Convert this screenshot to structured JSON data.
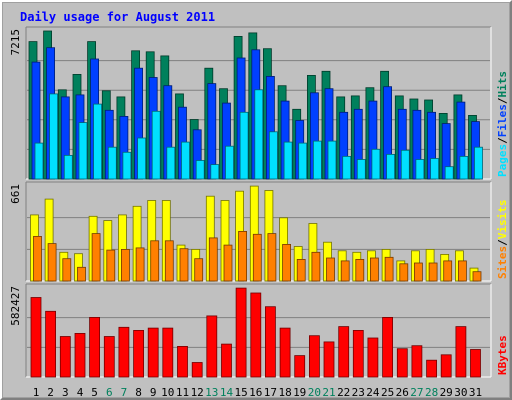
{
  "title": "Daily usage for August 2011",
  "colors": {
    "hits": "#00805c",
    "files": "#0040ff",
    "pages": "#00e0ff",
    "visits": "#ffff00",
    "sites": "#ff8000",
    "kbytes": "#ff0000",
    "weekend_label": "#00805c",
    "weekday_label": "#000000"
  },
  "chart_data": [
    {
      "type": "bar",
      "ymax_label": "7215",
      "ylim": [
        0,
        7215
      ],
      "grid": true,
      "categories": [
        "1",
        "2",
        "3",
        "4",
        "5",
        "6",
        "7",
        "8",
        "9",
        "10",
        "11",
        "12",
        "13",
        "14",
        "15",
        "16",
        "17",
        "18",
        "19",
        "20",
        "21",
        "22",
        "23",
        "24",
        "25",
        "26",
        "27",
        "28",
        "29",
        "30",
        "31"
      ],
      "weekend_days": [
        "6",
        "7",
        "13",
        "14",
        "20",
        "21",
        "27",
        "28"
      ],
      "legend": [
        {
          "label": "Pages",
          "color": "#00e0ff"
        },
        {
          "label": "Files",
          "color": "#0040ff"
        },
        {
          "label": "Hits",
          "color": "#00805c"
        }
      ],
      "series": [
        {
          "name": "Hits",
          "color": "#00805c",
          "values": [
            6700,
            7215,
            4350,
            5100,
            6700,
            4300,
            4000,
            6250,
            6200,
            6000,
            4150,
            2900,
            5400,
            4400,
            6950,
            7120,
            6350,
            4550,
            3400,
            5050,
            5250,
            4000,
            4050,
            4450,
            5250,
            4050,
            3900,
            3850,
            3200,
            4100,
            3100
          ]
        },
        {
          "name": "Files",
          "color": "#0040ff",
          "values": [
            5700,
            6400,
            4000,
            4100,
            5850,
            3350,
            3050,
            5400,
            4950,
            4550,
            3500,
            2400,
            4650,
            3700,
            5900,
            6300,
            5000,
            3800,
            2850,
            4200,
            4400,
            3250,
            3400,
            3800,
            4500,
            3400,
            3350,
            3250,
            2700,
            3750,
            2800
          ]
        },
        {
          "name": "Pages",
          "color": "#00e0ff",
          "values": [
            1750,
            4150,
            1150,
            2750,
            3650,
            1550,
            1300,
            2000,
            3300,
            1550,
            1800,
            900,
            700,
            1600,
            3250,
            4350,
            2300,
            1800,
            1750,
            1850,
            1850,
            1100,
            950,
            1450,
            1200,
            1400,
            950,
            1000,
            600,
            1100,
            1550
          ]
        }
      ]
    },
    {
      "type": "bar",
      "ymax_label": "661",
      "ylim": [
        0,
        661
      ],
      "grid": true,
      "categories": [
        "1",
        "2",
        "3",
        "4",
        "5",
        "6",
        "7",
        "8",
        "9",
        "10",
        "11",
        "12",
        "13",
        "14",
        "15",
        "16",
        "17",
        "18",
        "19",
        "20",
        "21",
        "22",
        "23",
        "24",
        "25",
        "26",
        "27",
        "28",
        "29",
        "30",
        "31"
      ],
      "legend": [
        {
          "label": "Sites",
          "color": "#ff8000"
        },
        {
          "label": "Visits",
          "color": "#ffff00"
        }
      ],
      "series": [
        {
          "name": "Visits",
          "color": "#ffff00",
          "values": [
            460,
            570,
            200,
            190,
            450,
            420,
            460,
            520,
            560,
            560,
            250,
            220,
            590,
            560,
            625,
            660,
            630,
            440,
            240,
            400,
            270,
            210,
            200,
            210,
            220,
            140,
            210,
            220,
            185,
            210,
            90
          ]
        },
        {
          "name": "Sites",
          "color": "#ff8000",
          "values": [
            310,
            260,
            155,
            95,
            330,
            215,
            220,
            230,
            280,
            280,
            225,
            155,
            300,
            250,
            345,
            325,
            330,
            255,
            150,
            200,
            160,
            140,
            150,
            160,
            165,
            120,
            125,
            125,
            140,
            140,
            65
          ]
        }
      ]
    },
    {
      "type": "bar",
      "ymax_label": "582427",
      "ylim": [
        0,
        582427
      ],
      "grid": true,
      "categories": [
        "1",
        "2",
        "3",
        "4",
        "5",
        "6",
        "7",
        "8",
        "9",
        "10",
        "11",
        "12",
        "13",
        "14",
        "15",
        "16",
        "17",
        "18",
        "19",
        "20",
        "21",
        "22",
        "23",
        "24",
        "25",
        "26",
        "27",
        "28",
        "29",
        "30",
        "31"
      ],
      "legend": [
        {
          "label": "KBytes",
          "color": "#ff0000"
        }
      ],
      "series": [
        {
          "name": "KBytes",
          "color": "#ff0000",
          "values": [
            520000,
            430000,
            265000,
            285000,
            390000,
            265000,
            325000,
            305000,
            320000,
            320000,
            200000,
            95000,
            400000,
            215000,
            582000,
            550000,
            460000,
            320000,
            140000,
            270000,
            230000,
            330000,
            305000,
            255000,
            390000,
            185000,
            205000,
            110000,
            145000,
            330000,
            180000
          ]
        }
      ]
    }
  ]
}
